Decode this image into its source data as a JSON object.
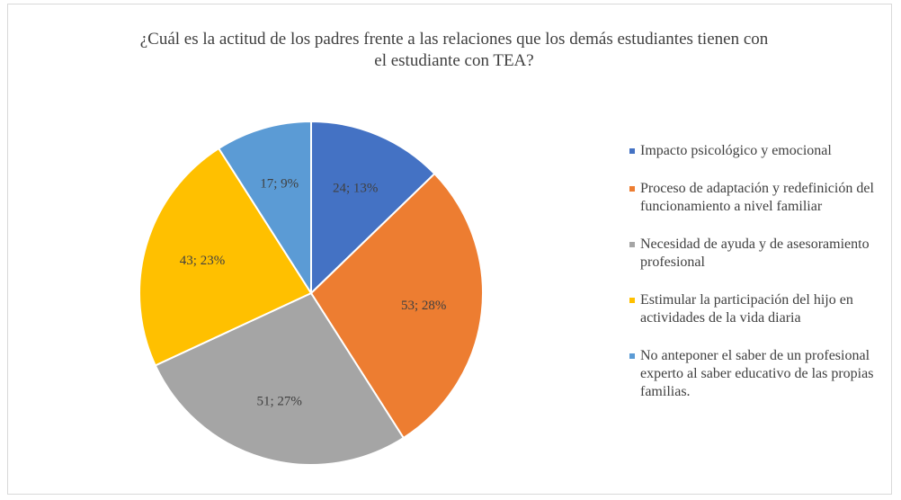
{
  "chart_data": {
    "type": "pie",
    "title": "¿Cuál es la actitud de los padres frente a las relaciones que los demás estudiantes tienen con el estudiante con TEA?",
    "categories": [
      "Impacto psicológico y emocional",
      "Proceso de adaptación y redefinición del funcionamiento a nivel familiar",
      "Necesidad de ayuda y de asesoramiento profesional",
      "Estimular la participación del hijo en actividades de la vida diaria",
      "No anteponer el saber de un profesional experto al saber educativo de las propias familias."
    ],
    "values": [
      24,
      53,
      51,
      43,
      17
    ],
    "value_labels": [
      "24; 13%",
      "53; 28%",
      "51; 27%",
      "43; 23%",
      "17; 9%"
    ],
    "colors": [
      "#4472c4",
      "#ed7d31",
      "#a5a5a5",
      "#ffc000",
      "#5b9bd5"
    ],
    "legend": "right"
  }
}
